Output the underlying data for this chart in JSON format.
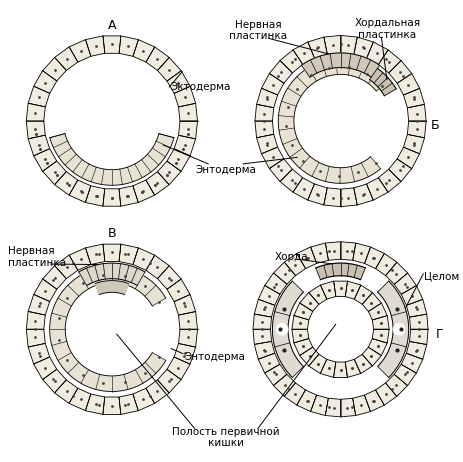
{
  "background_color": "#ffffff",
  "line_color": "#000000",
  "cell_fill": "#f0ece0",
  "labels": {
    "ektodерма": "Эктодерма",
    "entodерма": "Энтодерма",
    "nervnaya_top": "Нервная\nпластинка",
    "khordalnaya": "Хордальная\nпластинка",
    "nervnaya_left": "Нервная\nпластинка",
    "entodерма_v": "Энтодерма",
    "khorda_g": "Хорда",
    "tselom": "Целом",
    "polost": "Полость первичной\nкишки",
    "A": "А",
    "B": "Б",
    "V": "В",
    "G": "Г"
  },
  "font_size": 7.5,
  "label_font_size": 9
}
